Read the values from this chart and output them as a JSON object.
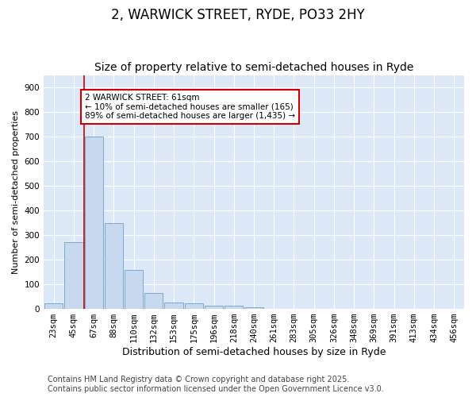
{
  "title": "2, WARWICK STREET, RYDE, PO33 2HY",
  "subtitle": "Size of property relative to semi-detached houses in Ryde",
  "xlabel": "Distribution of semi-detached houses by size in Ryde",
  "ylabel": "Number of semi-detached properties",
  "categories": [
    "23sqm",
    "45sqm",
    "67sqm",
    "88sqm",
    "110sqm",
    "132sqm",
    "153sqm",
    "175sqm",
    "196sqm",
    "218sqm",
    "240sqm",
    "261sqm",
    "283sqm",
    "305sqm",
    "326sqm",
    "348sqm",
    "369sqm",
    "391sqm",
    "413sqm",
    "434sqm",
    "456sqm"
  ],
  "values": [
    22,
    270,
    700,
    350,
    157,
    65,
    25,
    22,
    12,
    12,
    8,
    0,
    0,
    0,
    0,
    0,
    0,
    0,
    0,
    0,
    0
  ],
  "bar_color": "#c8d8ee",
  "bar_edge_color": "#7aaace",
  "background_color": "#ffffff",
  "plot_bg_color": "#dce8f8",
  "grid_color": "#ffffff",
  "vline_x": 1.5,
  "vline_color": "#cc0000",
  "annotation_text": "2 WARWICK STREET: 61sqm\n← 10% of semi-detached houses are smaller (165)\n89% of semi-detached houses are larger (1,435) →",
  "annotation_box_color": "#ffffff",
  "annotation_box_edge": "#cc0000",
  "footer": "Contains HM Land Registry data © Crown copyright and database right 2025.\nContains public sector information licensed under the Open Government Licence v3.0.",
  "ylim": [
    0,
    950
  ],
  "yticks": [
    0,
    100,
    200,
    300,
    400,
    500,
    600,
    700,
    800,
    900
  ],
  "title_fontsize": 12,
  "subtitle_fontsize": 10,
  "footer_fontsize": 7,
  "ylabel_fontsize": 8,
  "xlabel_fontsize": 9,
  "tick_fontsize": 7.5
}
